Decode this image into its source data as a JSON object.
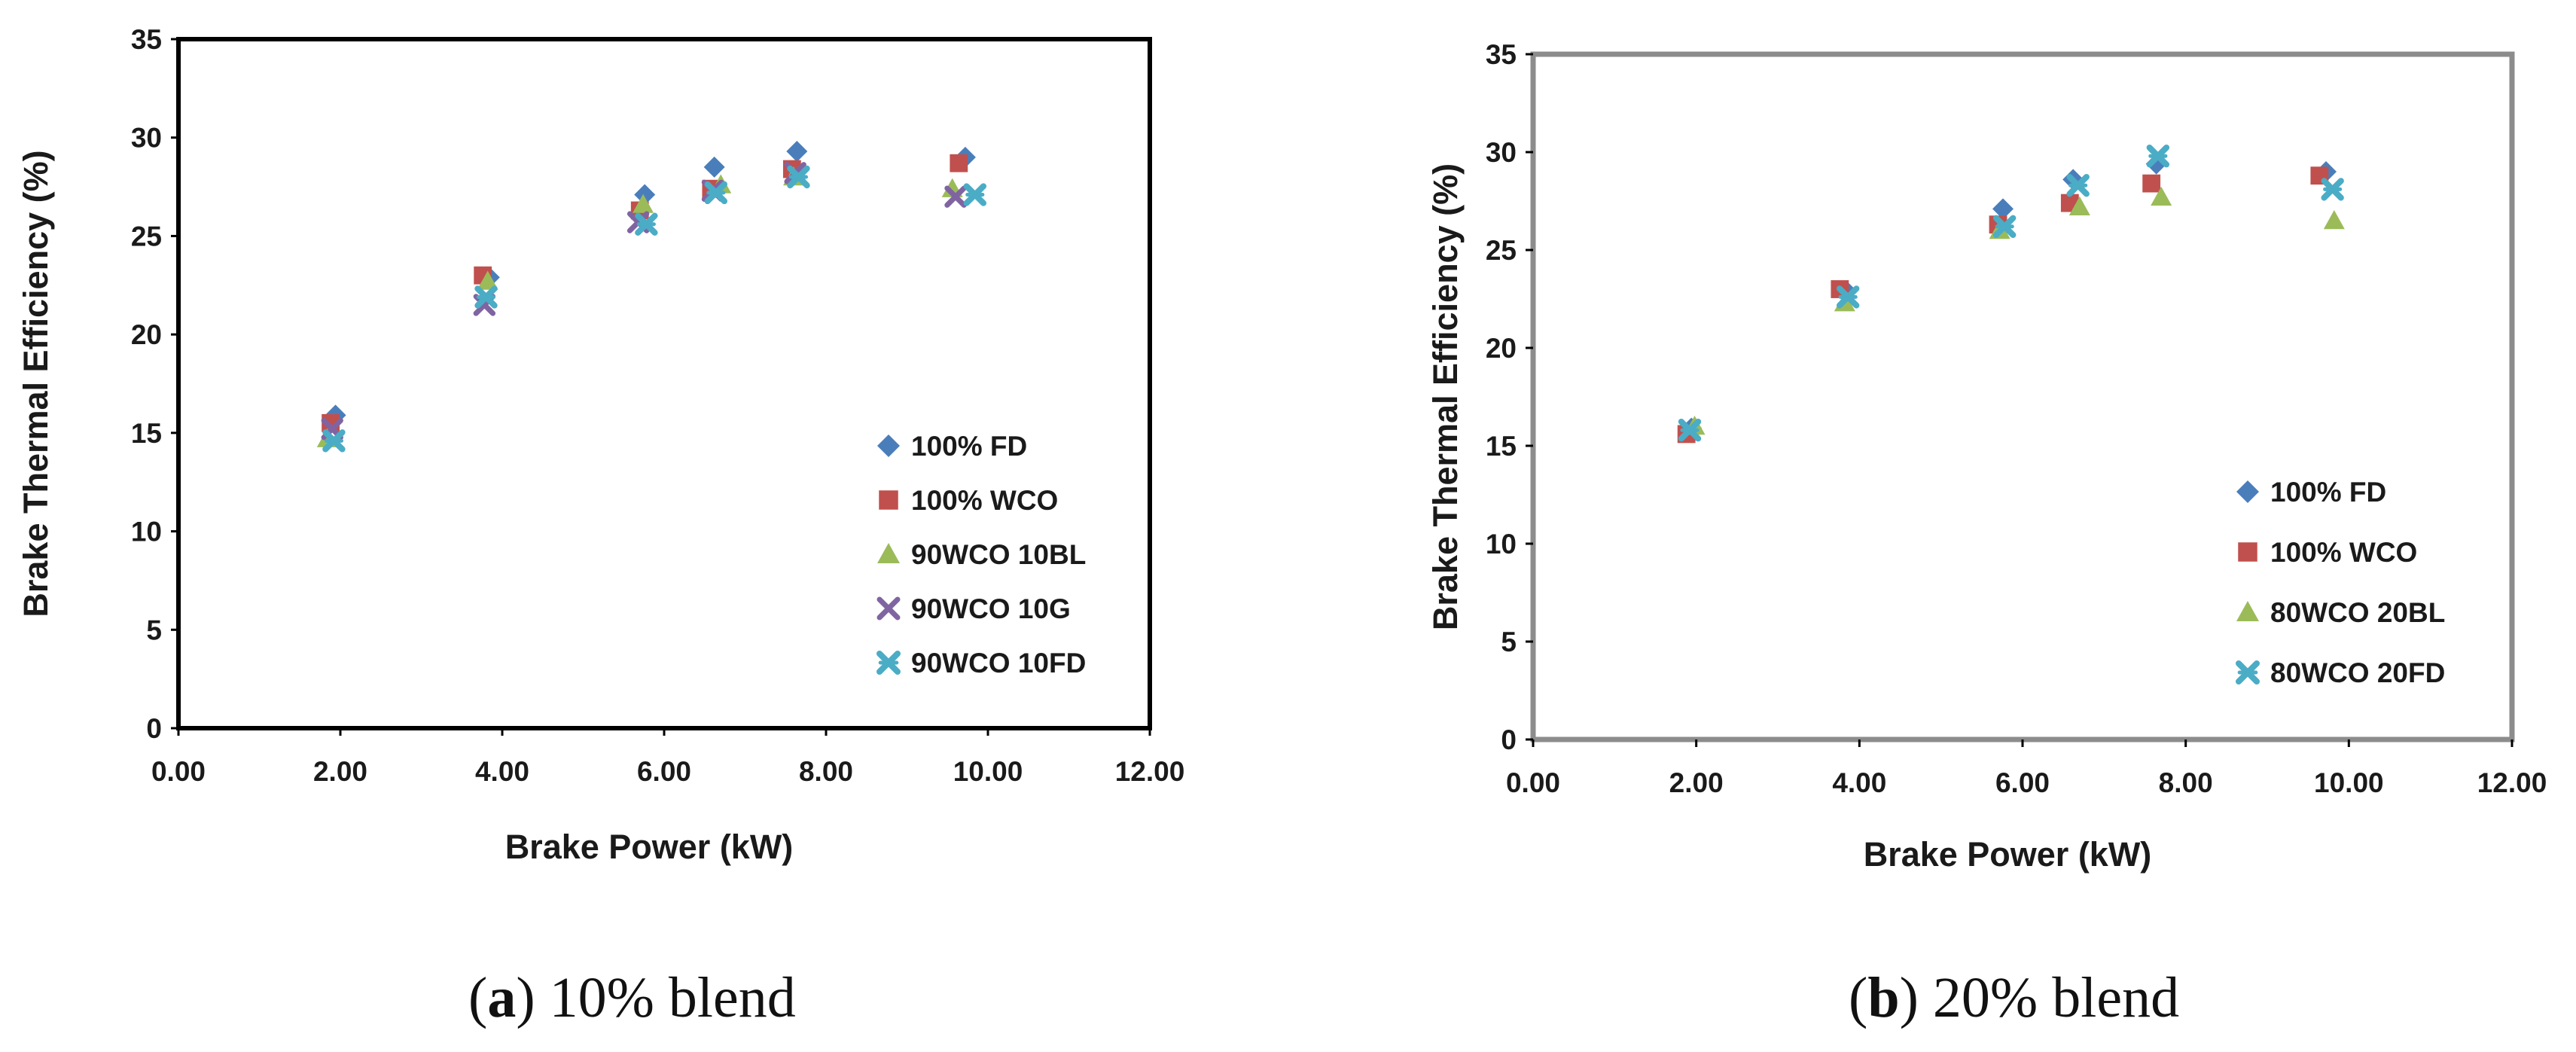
{
  "colors": {
    "series_1": "#4a7ebb",
    "series_2": "#c0504d",
    "series_3": "#9bbb59",
    "series_4": "#8064a2",
    "series_5": "#4bacc6",
    "frame_a": "#000000",
    "frame_b": "#8c8c8c"
  },
  "chart_data": [
    {
      "type": "scatter",
      "panel": "a",
      "caption": {
        "letter": "a",
        "open": "(",
        "close": ")",
        "text": " 10% blend"
      },
      "xlabel": "Brake Power (kW)",
      "ylabel": "Brake Thermal Efficiency (%)",
      "xlim": [
        0,
        12
      ],
      "ylim": [
        0,
        35
      ],
      "xticks": [
        "0.00",
        "2.00",
        "4.00",
        "6.00",
        "8.00",
        "10.00",
        "12.00"
      ],
      "yticks": [
        "0",
        "5",
        "10",
        "15",
        "20",
        "25",
        "30",
        "35"
      ],
      "legend_position": "lower-right",
      "series": [
        {
          "name": "100% FD",
          "marker": "diamond",
          "color": "#4a7ebb",
          "x": [
            1.94,
            3.84,
            5.76,
            6.62,
            7.64,
            9.72
          ],
          "y": [
            15.9,
            22.9,
            27.1,
            28.5,
            29.3,
            29.0
          ]
        },
        {
          "name": "100% WCO",
          "marker": "square",
          "color": "#c0504d",
          "x": [
            1.88,
            3.76,
            5.7,
            6.58,
            7.58,
            9.64
          ],
          "y": [
            15.5,
            23.0,
            26.3,
            27.4,
            28.4,
            28.7
          ]
        },
        {
          "name": "90WCO 10BL",
          "marker": "triangle",
          "color": "#9bbb59",
          "x": [
            1.84,
            3.82,
            5.74,
            6.7,
            7.6,
            9.56
          ],
          "y": [
            14.7,
            22.7,
            26.6,
            27.6,
            28.0,
            27.4
          ]
        },
        {
          "name": "90WCO 10G",
          "marker": "x",
          "color": "#8064a2",
          "x": [
            1.9,
            3.78,
            5.68,
            6.6,
            7.62,
            9.6
          ],
          "y": [
            15.2,
            21.5,
            25.7,
            27.3,
            28.2,
            27.0
          ]
        },
        {
          "name": "90WCO 10FD",
          "marker": "star",
          "color": "#4bacc6",
          "x": [
            1.92,
            3.8,
            5.78,
            6.64,
            7.66,
            9.84
          ],
          "y": [
            14.6,
            21.9,
            25.6,
            27.2,
            28.0,
            27.1
          ]
        }
      ]
    },
    {
      "type": "scatter",
      "panel": "b",
      "caption": {
        "letter": "b",
        "open": "(",
        "close": ")",
        "text": " 20% blend"
      },
      "xlabel": "Brake Power (kW)",
      "ylabel": "Brake Thermal Efficiency (%)",
      "xlim": [
        0,
        12
      ],
      "ylim": [
        0,
        35
      ],
      "xticks": [
        "0.00",
        "2.00",
        "4.00",
        "6.00",
        "8.00",
        "10.00",
        "12.00"
      ],
      "yticks": [
        "0",
        "5",
        "10",
        "15",
        "20",
        "25",
        "30",
        "35"
      ],
      "legend_position": "lower-right",
      "series": [
        {
          "name": "100% FD",
          "marker": "diamond",
          "color": "#4a7ebb",
          "x": [
            1.94,
            3.84,
            5.76,
            6.62,
            7.64,
            9.72
          ],
          "y": [
            15.9,
            22.9,
            27.1,
            28.6,
            29.4,
            29.0
          ]
        },
        {
          "name": "100% WCO",
          "marker": "square",
          "color": "#c0504d",
          "x": [
            1.88,
            3.76,
            5.7,
            6.58,
            7.58,
            9.64
          ],
          "y": [
            15.6,
            23.0,
            26.3,
            27.4,
            28.4,
            28.8
          ]
        },
        {
          "name": "80WCO 20BL",
          "marker": "triangle",
          "color": "#9bbb59",
          "x": [
            1.98,
            3.82,
            5.72,
            6.7,
            7.7,
            9.82
          ],
          "y": [
            16.0,
            22.3,
            26.0,
            27.2,
            27.7,
            26.5
          ]
        },
        {
          "name": "80WCO 20FD",
          "marker": "star",
          "color": "#4bacc6",
          "x": [
            1.92,
            3.86,
            5.78,
            6.68,
            7.66,
            9.8
          ],
          "y": [
            15.8,
            22.6,
            26.2,
            28.3,
            29.8,
            28.1
          ]
        }
      ]
    }
  ]
}
